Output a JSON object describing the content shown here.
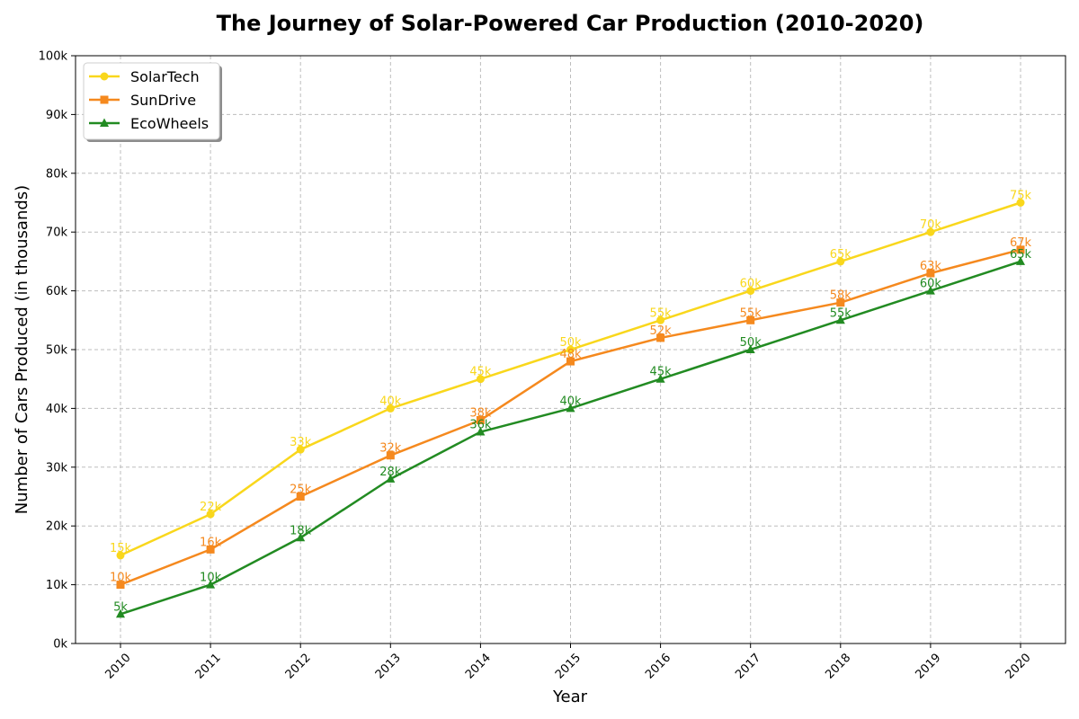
{
  "chart_data": {
    "type": "line",
    "title": "The Journey of Solar-Powered Car Production (2010-2020)",
    "xlabel": "Year",
    "ylabel": "Number of Cars Produced (in thousands)",
    "x": [
      "2010",
      "2011",
      "2012",
      "2013",
      "2014",
      "2015",
      "2016",
      "2017",
      "2018",
      "2019",
      "2020"
    ],
    "ylim": [
      0,
      100
    ],
    "yticks": [
      0,
      10,
      20,
      30,
      40,
      50,
      60,
      70,
      80,
      90,
      100
    ],
    "ytick_labels": [
      "0k",
      "10k",
      "20k",
      "30k",
      "40k",
      "50k",
      "60k",
      "70k",
      "80k",
      "90k",
      "100k"
    ],
    "grid": true,
    "legend_position": "top-left",
    "series": [
      {
        "name": "SolarTech",
        "color": "#f9d71c",
        "marker": "circle",
        "values": [
          15,
          22,
          33,
          40,
          45,
          50,
          55,
          60,
          65,
          70,
          75
        ],
        "labels": [
          "15k",
          "22k",
          "33k",
          "40k",
          "45k",
          "50k",
          "55k",
          "60k",
          "65k",
          "70k",
          "75k"
        ]
      },
      {
        "name": "SunDrive",
        "color": "#f5891e",
        "marker": "square",
        "values": [
          10,
          16,
          25,
          32,
          38,
          48,
          52,
          55,
          58,
          63,
          67
        ],
        "labels": [
          "10k",
          "16k",
          "25k",
          "32k",
          "38k",
          "48k",
          "52k",
          "55k",
          "58k",
          "63k",
          "67k"
        ]
      },
      {
        "name": "EcoWheels",
        "color": "#228b22",
        "marker": "triangle",
        "values": [
          5,
          10,
          18,
          28,
          36,
          40,
          45,
          50,
          55,
          60,
          65
        ],
        "labels": [
          "5k",
          "10k",
          "18k",
          "28k",
          "36k",
          "40k",
          "45k",
          "50k",
          "55k",
          "60k",
          "65k"
        ]
      }
    ]
  }
}
